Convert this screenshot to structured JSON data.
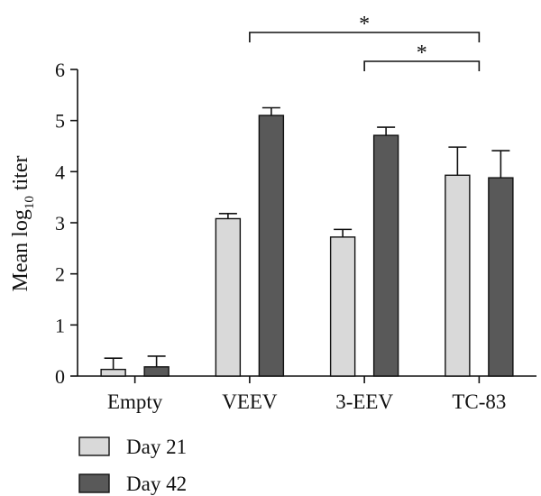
{
  "chart_data": {
    "type": "bar",
    "categories": [
      "Empty",
      "VEEV",
      "3-EEV",
      "TC-83"
    ],
    "series": [
      {
        "name": "Day 21",
        "values": [
          0.13,
          3.08,
          2.72,
          3.93
        ],
        "errors": [
          0.22,
          0.1,
          0.15,
          0.55
        ],
        "color": "#d9d9d9"
      },
      {
        "name": "Day 42",
        "values": [
          0.18,
          5.1,
          4.71,
          3.88
        ],
        "errors": [
          0.21,
          0.15,
          0.16,
          0.53
        ],
        "color": "#595959"
      }
    ],
    "ylabel": {
      "main": "Mean log",
      "subscript": "10",
      "suffix": " titer"
    },
    "ylim": [
      0,
      6
    ],
    "yticks": [
      0,
      1,
      2,
      3,
      4,
      5,
      6
    ],
    "significance": [
      {
        "label": "*",
        "from_category": "VEEV",
        "to_category": "TC-83"
      },
      {
        "label": "*",
        "from_category": "3-EEV",
        "to_category": "TC-83"
      }
    ],
    "legend_position": "bottom-left",
    "grid": false
  }
}
